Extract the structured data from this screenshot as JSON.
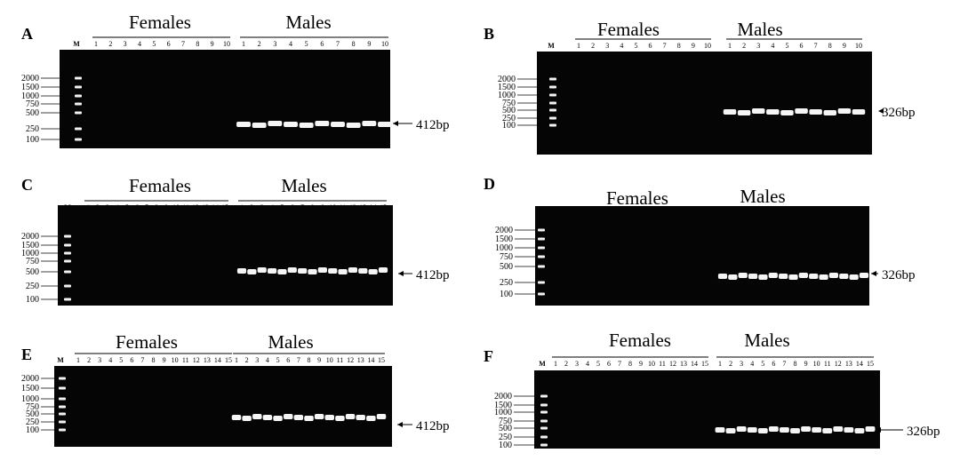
{
  "ladder_label": "M",
  "females_label": "Females",
  "males_label": "Males",
  "ladder_sizes": [
    "2000",
    "1500",
    "1000",
    "750",
    "500",
    "250",
    "100"
  ],
  "panels": [
    {
      "letter": "A",
      "lanes_per_group": 10,
      "product_label": "412bp",
      "ladder_bands": [
        "2000",
        "1500",
        "1000",
        "750",
        "500",
        "250",
        "100"
      ]
    },
    {
      "letter": "B",
      "lanes_per_group": 10,
      "product_label": "326bp",
      "ladder_bands": [
        "2000",
        "1500",
        "1000",
        "750",
        "500",
        "250",
        "100"
      ]
    },
    {
      "letter": "C",
      "lanes_per_group": 15,
      "product_label": "412bp",
      "ladder_bands": [
        "2000",
        "1500",
        "1000",
        "750",
        "500",
        "250",
        "100"
      ]
    },
    {
      "letter": "D",
      "lanes_per_group": 15,
      "product_label": "326bp",
      "ladder_bands": [
        "2000",
        "1500",
        "1000",
        "750",
        "500",
        "250",
        "100"
      ]
    },
    {
      "letter": "E",
      "lanes_per_group": 15,
      "product_label": "412bp",
      "ladder_bands": [
        "2000",
        "1500",
        "1000",
        "750",
        "500",
        "250",
        "100"
      ]
    },
    {
      "letter": "F",
      "lanes_per_group": 15,
      "product_label": "326bp",
      "ladder_bands": [
        "2000",
        "1500",
        "1000",
        "750",
        "500",
        "250",
        "100"
      ]
    }
  ]
}
